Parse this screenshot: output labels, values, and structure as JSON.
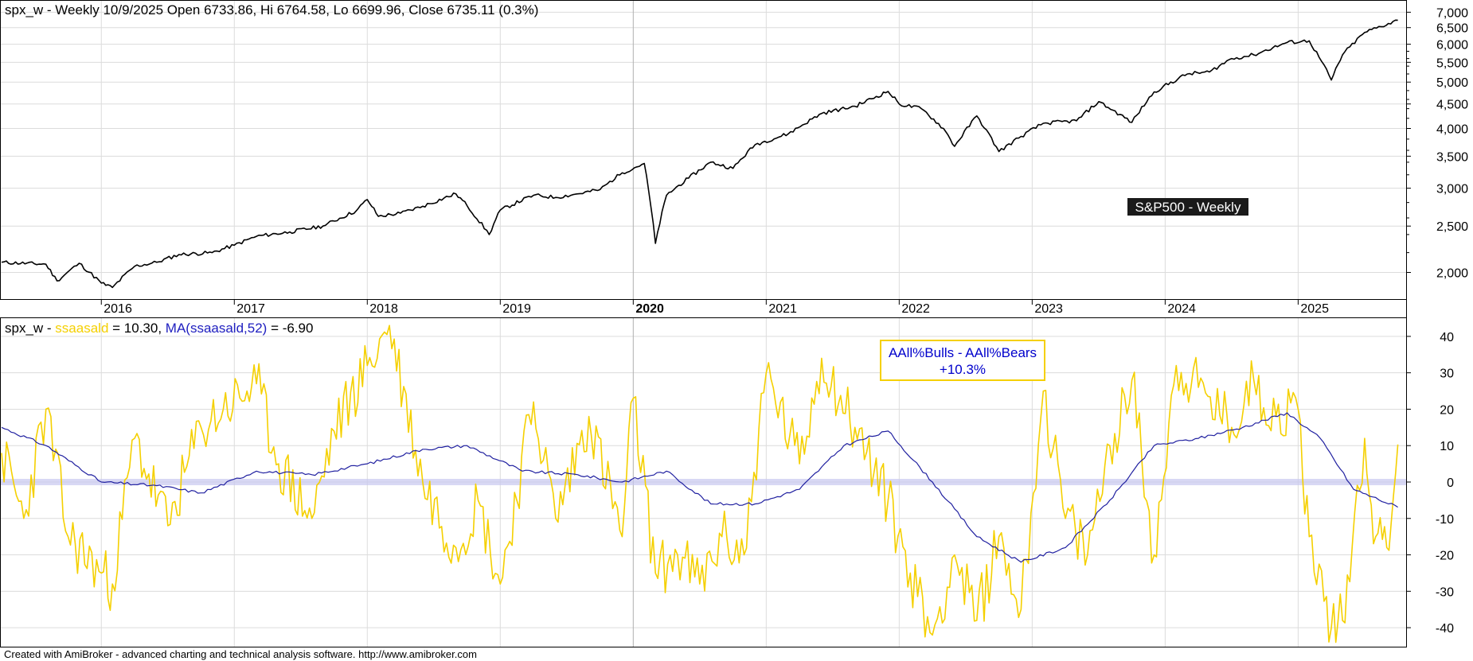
{
  "price_pane": {
    "header": "spx_w - Weekly 10/9/2025 Open 6733.86, Hi 6764.58, Lo 6699.96, Close 6735.11 (0.3%)",
    "badge": "S&P500 - Weekly",
    "y_ticks": [
      "7,000",
      "6,500",
      "6,000",
      "5,500",
      "5,000",
      "4,500",
      "4,000",
      "3,500",
      "3,000",
      "2,500",
      "2,000"
    ]
  },
  "indicator_pane": {
    "header_prefix": "spx_w - ",
    "series1_label": "ssaasald",
    "series1_value_text": " = 10.30, ",
    "series2_label": "MA(ssaasald,52)",
    "series2_value_text": " = -6.90",
    "annotation_line1": "AAll%Bulls - AAll%Bears",
    "annotation_line2": "+10.3%",
    "y_ticks": [
      "40",
      "30",
      "20",
      "10",
      "0",
      "-10",
      "-20",
      "-30",
      "-40"
    ]
  },
  "x_axis": {
    "years": [
      "2016",
      "2017",
      "2018",
      "2019",
      "2020",
      "2021",
      "2022",
      "2023",
      "2024",
      "2025"
    ],
    "bold_year": "2020"
  },
  "footer": "Created with AmiBroker - advanced charting and technical analysis software. http://www.amibroker.com",
  "colors": {
    "price_line": "#000000",
    "spread_line": "#f5d000",
    "ma_line": "#2020a0",
    "zero_band": "#c8c8f0",
    "grid": "#dcdcdc",
    "badge_bg": "#1a1a1a",
    "badge_text": "#ffffff",
    "annotation_text": "#0000cc",
    "annotation_border": "#f5d000"
  },
  "chart_data": [
    {
      "type": "line",
      "title": "S&P500 - Weekly",
      "y_scale": "log",
      "ylim": [
        1800,
        7200
      ],
      "x_range": [
        "2015-04",
        "2025-10"
      ],
      "series": [
        {
          "name": "spx_w",
          "x": [
            "2015-04",
            "2015-08",
            "2015-09",
            "2015-11",
            "2016-01",
            "2016-02",
            "2016-04",
            "2016-06",
            "2016-08",
            "2016-11",
            "2017-01",
            "2017-03",
            "2017-06",
            "2017-09",
            "2017-12",
            "2018-01",
            "2018-02",
            "2018-04",
            "2018-06",
            "2018-09",
            "2018-10",
            "2018-12",
            "2019-01",
            "2019-04",
            "2019-06",
            "2019-08",
            "2019-10",
            "2019-12",
            "2020-02",
            "2020-03",
            "2020-04",
            "2020-06",
            "2020-08",
            "2020-10",
            "2020-12",
            "2021-03",
            "2021-06",
            "2021-09",
            "2021-12",
            "2022-01",
            "2022-03",
            "2022-05",
            "2022-06",
            "2022-08",
            "2022-10",
            "2022-12",
            "2023-02",
            "2023-05",
            "2023-07",
            "2023-10",
            "2023-12",
            "2024-03",
            "2024-05",
            "2024-07",
            "2024-09",
            "2024-12",
            "2025-02",
            "2025-04",
            "2025-05",
            "2025-07",
            "2025-10"
          ],
          "values": [
            2100,
            2080,
            1920,
            2090,
            1900,
            1860,
            2060,
            2100,
            2180,
            2200,
            2280,
            2380,
            2430,
            2500,
            2690,
            2840,
            2620,
            2660,
            2750,
            2920,
            2760,
            2400,
            2700,
            2900,
            2870,
            2920,
            2980,
            3230,
            3380,
            2300,
            2900,
            3150,
            3400,
            3300,
            3700,
            3900,
            4300,
            4450,
            4780,
            4500,
            4400,
            4000,
            3670,
            4250,
            3580,
            3850,
            4100,
            4150,
            4550,
            4120,
            4770,
            5200,
            5250,
            5600,
            5700,
            6050,
            6100,
            5050,
            5700,
            6350,
            6735
          ]
        }
      ]
    },
    {
      "type": "line",
      "ylim": [
        -45,
        45
      ],
      "x_range": [
        "2015-04",
        "2025-10"
      ],
      "series": [
        {
          "name": "ssaasald",
          "x": [
            "2015-04",
            "2015-06",
            "2015-08",
            "2015-10",
            "2016-01",
            "2016-02",
            "2016-04",
            "2016-07",
            "2016-10",
            "2016-12",
            "2017-03",
            "2017-05",
            "2017-08",
            "2017-10",
            "2018-01",
            "2018-03",
            "2018-06",
            "2018-09",
            "2018-11",
            "2019-01",
            "2019-04",
            "2019-06",
            "2019-09",
            "2019-12",
            "2020-01",
            "2020-03",
            "2020-05",
            "2020-07",
            "2020-09",
            "2020-11",
            "2021-01",
            "2021-04",
            "2021-06",
            "2021-09",
            "2021-12",
            "2022-02",
            "2022-04",
            "2022-06",
            "2022-08",
            "2022-10",
            "2022-12",
            "2023-02",
            "2023-04",
            "2023-06",
            "2023-08",
            "2023-10",
            "2023-12",
            "2024-02",
            "2024-04",
            "2024-07",
            "2024-09",
            "2024-11",
            "2025-01",
            "2025-02",
            "2025-04",
            "2025-05",
            "2025-07",
            "2025-08",
            "2025-09",
            "2025-10"
          ],
          "values": [
            8,
            -10,
            20,
            -15,
            -25,
            -28,
            12,
            -12,
            15,
            20,
            27,
            5,
            -10,
            14,
            32,
            43,
            0,
            -18,
            -5,
            -28,
            22,
            -10,
            18,
            -15,
            23,
            -25,
            -20,
            -28,
            -15,
            -20,
            30,
            5,
            34,
            15,
            -5,
            -25,
            -42,
            -20,
            -38,
            -15,
            -35,
            25,
            -10,
            -20,
            10,
            28,
            -20,
            32,
            26,
            15,
            28,
            18,
            20,
            -15,
            -40,
            -38,
            12,
            -15,
            -18,
            10.3
          ]
        },
        {
          "name": "MA(ssaasald,52)",
          "x": [
            "2015-04",
            "2015-08",
            "2016-01",
            "2016-06",
            "2016-10",
            "2017-03",
            "2017-08",
            "2018-01",
            "2018-06",
            "2018-10",
            "2019-03",
            "2019-08",
            "2019-12",
            "2020-04",
            "2020-08",
            "2020-12",
            "2021-04",
            "2021-08",
            "2021-12",
            "2022-04",
            "2022-08",
            "2022-12",
            "2023-04",
            "2023-08",
            "2023-12",
            "2024-04",
            "2024-08",
            "2024-12",
            "2025-03",
            "2025-06",
            "2025-10"
          ],
          "values": [
            15,
            10,
            0,
            -1,
            -3,
            3,
            2,
            5,
            9,
            10,
            3,
            2,
            0,
            3,
            -6,
            -6,
            -2,
            10,
            14,
            0,
            -15,
            -22,
            -18,
            -5,
            10,
            12,
            15,
            19,
            12,
            -2,
            -6.9
          ]
        }
      ]
    }
  ]
}
